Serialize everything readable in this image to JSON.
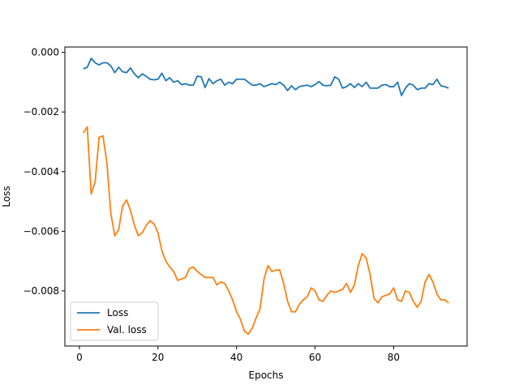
{
  "chart_data": {
    "type": "line",
    "xlabel": "Epochs",
    "ylabel": "Loss",
    "xlim": [
      -3.7,
      98.7
    ],
    "ylim": [
      -0.00985,
      0.00018
    ],
    "xticks": [
      0,
      20,
      40,
      60,
      80
    ],
    "yticks": [
      0.0,
      -0.002,
      -0.004,
      -0.006,
      -0.008
    ],
    "ytick_labels": [
      "0.000",
      "−0.002",
      "−0.004",
      "−0.006",
      "−0.008"
    ],
    "xtick_labels": [
      "0",
      "20",
      "40",
      "60",
      "80"
    ],
    "grid": false,
    "legend_position": "lower-left",
    "series": [
      {
        "name": "Loss",
        "color": "#1f77b4",
        "x": [
          1,
          2,
          3,
          4,
          5,
          6,
          7,
          8,
          9,
          10,
          11,
          12,
          13,
          14,
          15,
          16,
          17,
          18,
          19,
          20,
          21,
          22,
          23,
          24,
          25,
          26,
          27,
          28,
          29,
          30,
          31,
          32,
          33,
          34,
          35,
          36,
          37,
          38,
          39,
          40,
          41,
          42,
          43,
          44,
          45,
          46,
          47,
          48,
          49,
          50,
          51,
          52,
          53,
          54,
          55,
          56,
          57,
          58,
          59,
          60,
          61,
          62,
          63,
          64,
          65,
          66,
          67,
          68,
          69,
          70,
          71,
          72,
          73,
          74,
          75,
          76,
          77,
          78,
          79,
          80,
          81,
          82,
          83,
          84,
          85,
          86,
          87,
          88,
          89,
          90,
          91,
          92,
          93,
          94
        ],
        "values": [
          -0.00055,
          -0.0005,
          -0.0002,
          -0.00035,
          -0.00042,
          -0.00035,
          -0.00035,
          -0.00045,
          -0.00068,
          -0.0005,
          -0.00065,
          -0.00068,
          -0.00052,
          -0.00072,
          -0.00085,
          -0.00072,
          -0.0008,
          -0.0009,
          -0.00092,
          -0.0009,
          -0.0007,
          -0.00095,
          -0.00085,
          -0.001,
          -0.00095,
          -0.00108,
          -0.00105,
          -0.0011,
          -0.0011,
          -0.0008,
          -0.00082,
          -0.00118,
          -0.00088,
          -0.00105,
          -0.00095,
          -0.0009,
          -0.0011,
          -0.001,
          -0.00105,
          -0.0009,
          -0.0009,
          -0.0009,
          -0.001,
          -0.0011,
          -0.0011,
          -0.00105,
          -0.00115,
          -0.0011,
          -0.00105,
          -0.00108,
          -0.001,
          -0.0011,
          -0.00128,
          -0.00112,
          -0.00125,
          -0.00115,
          -0.00112,
          -0.0011,
          -0.00115,
          -0.00108,
          -0.00098,
          -0.0011,
          -0.00112,
          -0.0011,
          -0.00082,
          -0.0009,
          -0.0012,
          -0.00115,
          -0.00105,
          -0.00118,
          -0.00105,
          -0.00115,
          -0.001,
          -0.0012,
          -0.0012,
          -0.0012,
          -0.0011,
          -0.00108,
          -0.00115,
          -0.00115,
          -0.001,
          -0.00145,
          -0.0012,
          -0.00105,
          -0.0011,
          -0.00125,
          -0.0012,
          -0.0012,
          -0.00105,
          -0.00108,
          -0.0009,
          -0.00112,
          -0.00115,
          -0.0012
        ]
      },
      {
        "name": "Val. loss",
        "color": "#ff7f0e",
        "x": [
          1,
          2,
          3,
          4,
          5,
          6,
          7,
          8,
          9,
          10,
          11,
          12,
          13,
          14,
          15,
          16,
          17,
          18,
          19,
          20,
          21,
          22,
          23,
          24,
          25,
          26,
          27,
          28,
          29,
          30,
          31,
          32,
          33,
          34,
          35,
          36,
          37,
          38,
          39,
          40,
          41,
          42,
          43,
          44,
          45,
          46,
          47,
          48,
          49,
          50,
          51,
          52,
          53,
          54,
          55,
          56,
          57,
          58,
          59,
          60,
          61,
          62,
          63,
          64,
          65,
          66,
          67,
          68,
          69,
          70,
          71,
          72,
          73,
          74,
          75,
          76,
          77,
          78,
          79,
          80,
          81,
          82,
          83,
          84,
          85,
          86,
          87,
          88,
          89,
          90,
          91,
          92,
          93,
          94
        ],
        "values": [
          -0.0027,
          -0.0025,
          -0.00475,
          -0.00435,
          -0.00285,
          -0.0028,
          -0.0037,
          -0.0054,
          -0.00615,
          -0.00595,
          -0.00515,
          -0.00495,
          -0.0053,
          -0.0058,
          -0.00615,
          -0.00605,
          -0.0058,
          -0.00565,
          -0.00575,
          -0.00605,
          -0.00665,
          -0.007,
          -0.0072,
          -0.00735,
          -0.00765,
          -0.0076,
          -0.00755,
          -0.00725,
          -0.0072,
          -0.00735,
          -0.00745,
          -0.00755,
          -0.00755,
          -0.00755,
          -0.0078,
          -0.0077,
          -0.00775,
          -0.008,
          -0.0083,
          -0.0087,
          -0.00895,
          -0.00935,
          -0.00945,
          -0.00925,
          -0.0089,
          -0.0086,
          -0.0076,
          -0.00715,
          -0.00735,
          -0.0073,
          -0.0073,
          -0.00775,
          -0.00835,
          -0.0087,
          -0.0087,
          -0.00845,
          -0.0083,
          -0.0082,
          -0.0079,
          -0.008,
          -0.0083,
          -0.00835,
          -0.00815,
          -0.008,
          -0.00805,
          -0.008,
          -0.00795,
          -0.00775,
          -0.00805,
          -0.0078,
          -0.00715,
          -0.00675,
          -0.0069,
          -0.00745,
          -0.00825,
          -0.0084,
          -0.0082,
          -0.00815,
          -0.0081,
          -0.0079,
          -0.0083,
          -0.00835,
          -0.008,
          -0.00805,
          -0.00835,
          -0.00855,
          -0.00835,
          -0.0077,
          -0.00745,
          -0.0077,
          -0.0081,
          -0.0083,
          -0.0083,
          -0.0084
        ]
      }
    ]
  }
}
